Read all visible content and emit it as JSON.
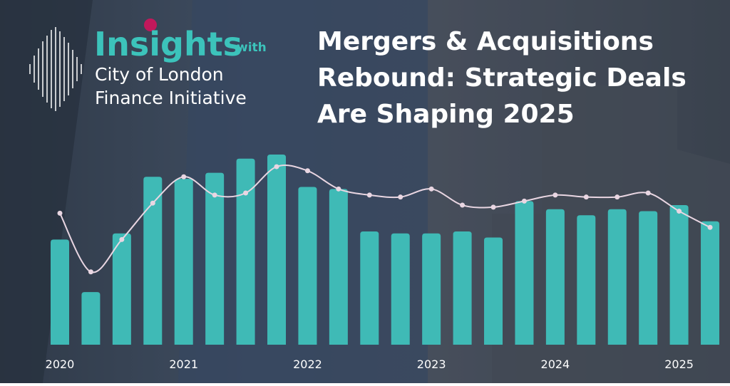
{
  "logo": {
    "name": "Insights",
    "with": "with",
    "line1": "City of London",
    "line2": "Finance Initiative"
  },
  "chart_data": {
    "type": "bar_line",
    "title": [
      "Mergers & Acquisitions",
      "Rebound: Strategic Deals",
      "Are Shaping 2025"
    ],
    "categories": [
      "2020",
      null,
      null,
      null,
      "2021",
      null,
      null,
      null,
      "2022",
      null,
      null,
      null,
      "2023",
      null,
      null,
      null,
      "2024",
      null,
      null,
      null,
      "2025",
      null
    ],
    "series": [
      {
        "kind": "bar",
        "color": "#3fbab6",
        "values": [
          52,
          26,
          55,
          83,
          82,
          85,
          92,
          94,
          78,
          77,
          56,
          55,
          55,
          56,
          53,
          71,
          67,
          64,
          67,
          66,
          69,
          61
        ]
      },
      {
        "kind": "line",
        "color": "#e9d6e2",
        "values": [
          65,
          36,
          52,
          70,
          83,
          74,
          75,
          88,
          86,
          77,
          74,
          73,
          77,
          69,
          68,
          71,
          74,
          73,
          73,
          75,
          66,
          58
        ]
      }
    ],
    "ylim": [
      0,
      100
    ]
  }
}
